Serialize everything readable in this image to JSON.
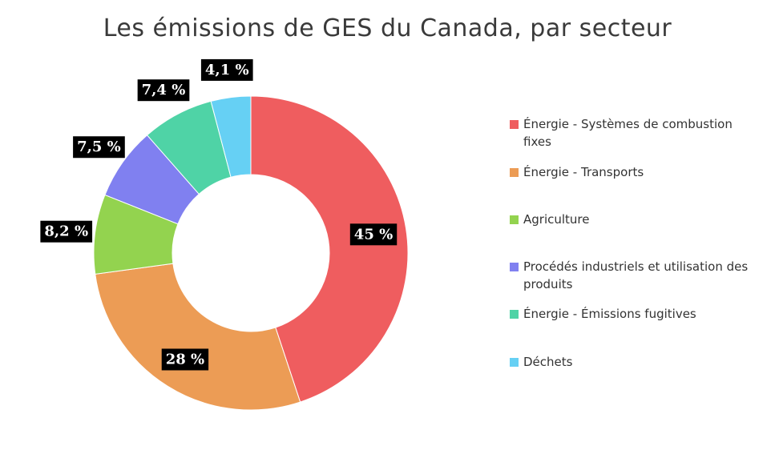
{
  "chart_data": {
    "type": "pie",
    "title": "Les émissions de GES du Canada, par secteur",
    "donut": true,
    "legend_position": "right",
    "series": [
      {
        "name": "Énergie - Systèmes de combustion fixes",
        "value": 45,
        "label": "45 %",
        "color": "#ef5d5f"
      },
      {
        "name": "Énergie - Transports",
        "value": 28,
        "label": "28 %",
        "color": "#ec9c55"
      },
      {
        "name": "Agriculture",
        "value": 8.2,
        "label": "8,2 %",
        "color": "#93d34f"
      },
      {
        "name": "Procédés industriels et utilisation des produits",
        "value": 7.5,
        "label": "7,5 %",
        "color": "#8080f0"
      },
      {
        "name": "Énergie - Émissions fugitives",
        "value": 7.4,
        "label": "7,4 %",
        "color": "#4fd3a6"
      },
      {
        "name": "Déchets",
        "value": 4.1,
        "label": "4,1 %",
        "color": "#66d0f4"
      }
    ]
  }
}
